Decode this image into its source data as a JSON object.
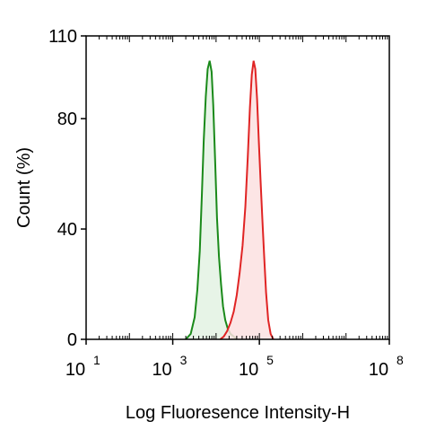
{
  "chart_data": {
    "type": "area",
    "title": "",
    "xlabel": "Log Fluoresence Intensity-H",
    "ylabel": "Count (%)",
    "x_scale": "log",
    "x_range": [
      10,
      100000000
    ],
    "y_range": [
      0,
      110
    ],
    "x_ticks": [
      {
        "base": "10",
        "exp": "1",
        "value": 10
      },
      {
        "base": "10",
        "exp": "3",
        "value": 1000
      },
      {
        "base": "10",
        "exp": "5",
        "value": 100000
      },
      {
        "base": "10",
        "exp": "8",
        "value": 100000000
      }
    ],
    "y_ticks": [
      {
        "label": "0",
        "value": 0
      },
      {
        "label": "40",
        "value": 40
      },
      {
        "label": "80",
        "value": 80
      },
      {
        "label": "110",
        "value": 110
      }
    ],
    "grid": false,
    "legend": "none",
    "series": [
      {
        "color": "#1a8a1a",
        "fill": "#e3f2e3",
        "points": [
          [
            2000,
            0
          ],
          [
            2600,
            2
          ],
          [
            3200,
            8
          ],
          [
            3700,
            18
          ],
          [
            4200,
            32
          ],
          [
            4700,
            52
          ],
          [
            5200,
            72
          ],
          [
            5800,
            88
          ],
          [
            6400,
            98
          ],
          [
            7100,
            101
          ],
          [
            7900,
            97
          ],
          [
            8600,
            85
          ],
          [
            9500,
            65
          ],
          [
            10500,
            44
          ],
          [
            11700,
            30
          ],
          [
            13000,
            20
          ],
          [
            14500,
            12
          ],
          [
            16300,
            7
          ],
          [
            18500,
            4
          ],
          [
            21500,
            2
          ],
          [
            25500,
            1
          ],
          [
            30000,
            0
          ]
        ]
      },
      {
        "color": "#e02424",
        "fill": "#fbe1e1",
        "points": [
          [
            12500,
            0
          ],
          [
            15000,
            1
          ],
          [
            18000,
            3
          ],
          [
            21500,
            6
          ],
          [
            25500,
            10
          ],
          [
            30000,
            16
          ],
          [
            35000,
            24
          ],
          [
            41000,
            34
          ],
          [
            47500,
            48
          ],
          [
            54000,
            66
          ],
          [
            60500,
            84
          ],
          [
            67000,
            96
          ],
          [
            73500,
            101
          ],
          [
            80500,
            98
          ],
          [
            88500,
            87
          ],
          [
            97000,
            72
          ],
          [
            106000,
            58
          ],
          [
            117000,
            44
          ],
          [
            129000,
            30
          ],
          [
            143000,
            17
          ],
          [
            160000,
            7
          ],
          [
            182000,
            2
          ],
          [
            210000,
            0
          ]
        ]
      }
    ]
  }
}
